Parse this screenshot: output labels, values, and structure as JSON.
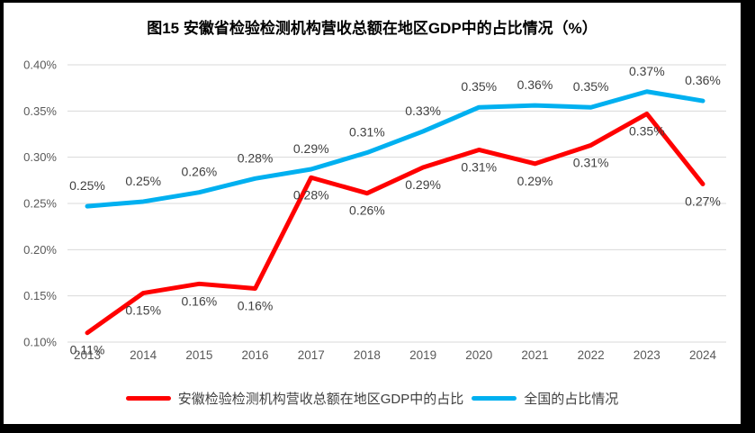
{
  "title": "图15 安徽省检验检测机构营收总额在地区GDP中的占比情况（%）",
  "chart_data": {
    "type": "line",
    "x": [
      "2013",
      "2014",
      "2015",
      "2016",
      "2017",
      "2018",
      "2019",
      "2020",
      "2021",
      "2022",
      "2023",
      "2024"
    ],
    "series": [
      {
        "key": "anhui",
        "name": "安徽检验检测机构营收总额在地区GDP中的占比",
        "color": "#FF0000",
        "label_side": "below",
        "values": [
          0.11,
          0.153,
          0.163,
          0.158,
          0.278,
          0.261,
          0.289,
          0.308,
          0.293,
          0.313,
          0.347,
          0.271
        ],
        "point_labels": [
          "0.11%",
          "0.15%",
          "0.16%",
          "0.16%",
          "0.28%",
          "0.26%",
          "0.29%",
          "0.31%",
          "0.29%",
          "0.31%",
          "0.35%",
          "0.27%"
        ]
      },
      {
        "key": "national",
        "name": "全国的占比情况",
        "color": "#00B0F0",
        "label_side": "above",
        "values": [
          0.247,
          0.252,
          0.262,
          0.277,
          0.287,
          0.305,
          0.328,
          0.354,
          0.356,
          0.354,
          0.371,
          0.361
        ],
        "point_labels": [
          "0.25%",
          "0.25%",
          "0.26%",
          "0.28%",
          "0.29%",
          "0.31%",
          "0.33%",
          "0.35%",
          "0.36%",
          "0.35%",
          "0.37%",
          "0.36%"
        ]
      }
    ],
    "xlabel": "",
    "ylabel": "",
    "ylim": [
      0.1,
      0.4
    ],
    "ytick_step": 0.05,
    "yticks": [
      "0.10%",
      "0.15%",
      "0.20%",
      "0.25%",
      "0.30%",
      "0.35%",
      "0.40%"
    ],
    "grid": true,
    "legend_position": "bottom"
  },
  "colors": {
    "grid": "#D9D9D9",
    "axis_text": "#595959",
    "point_label_text": "#404040",
    "title_text": "#000000",
    "frame": "#000000",
    "background": "#FFFFFF"
  }
}
